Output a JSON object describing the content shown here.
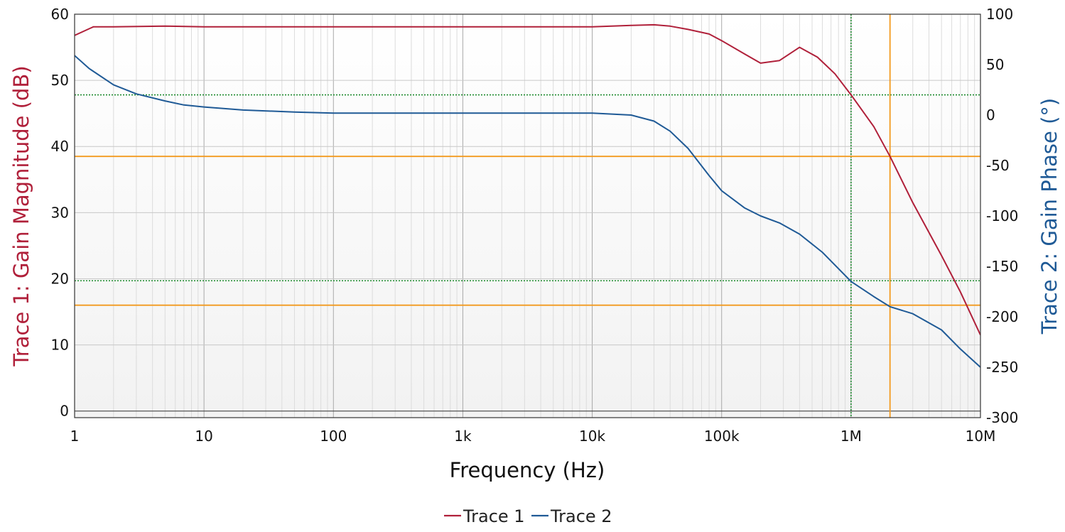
{
  "chart_data": {
    "type": "line",
    "xlabel": "Frequency (Hz)",
    "x_scale": "log",
    "xlim": [
      1,
      10000000
    ],
    "x_ticks": [
      {
        "value": 1,
        "label": "1"
      },
      {
        "value": 10,
        "label": "10"
      },
      {
        "value": 100,
        "label": "100"
      },
      {
        "value": 1000,
        "label": "1k"
      },
      {
        "value": 10000,
        "label": "10k"
      },
      {
        "value": 100000,
        "label": "100k"
      },
      {
        "value": 1000000,
        "label": "1M"
      },
      {
        "value": 10000000,
        "label": "10M"
      }
    ],
    "y_left": {
      "label": "Trace 1: Gain Magnitude (dB)",
      "lim": [
        -1,
        60
      ],
      "ticks": [
        {
          "value": 0,
          "label": "0"
        },
        {
          "value": 10,
          "label": "10"
        },
        {
          "value": 20,
          "label": "20"
        },
        {
          "value": 30,
          "label": "30"
        },
        {
          "value": 40,
          "label": "40"
        },
        {
          "value": 50,
          "label": "50"
        },
        {
          "value": 60,
          "label": "60"
        }
      ],
      "color": "#b0203a"
    },
    "y_right": {
      "label": "Trace 2: Gain Phase (°)",
      "lim": [
        -300,
        100
      ],
      "ticks": [
        {
          "value": 100,
          "label": "100"
        },
        {
          "value": 50,
          "label": "50"
        },
        {
          "value": 0,
          "label": "0"
        },
        {
          "value": -50,
          "label": "-50"
        },
        {
          "value": -100,
          "label": "-100"
        },
        {
          "value": -150,
          "label": "-150"
        },
        {
          "value": -200,
          "label": "-200"
        },
        {
          "value": -250,
          "label": "-250"
        },
        {
          "value": -300,
          "label": "-300"
        }
      ],
      "color": "#1f5a96"
    },
    "grid": true,
    "legend_position": "bottom-center",
    "series": [
      {
        "name": "Trace 1",
        "axis": "left",
        "color": "#b0203a",
        "x": [
          1,
          1.4,
          2,
          5,
          10,
          100,
          1000,
          10000,
          20000,
          30000,
          40000,
          55000,
          80000,
          100000,
          150000,
          200000,
          280000,
          400000,
          550000,
          750000,
          1000000,
          1500000,
          2000000,
          3000000,
          5000000,
          7000000,
          10000000
        ],
        "values": [
          56.8,
          58.1,
          58.1,
          58.2,
          58.1,
          58.1,
          58.1,
          58.1,
          58.3,
          58.4,
          58.2,
          57.7,
          57.0,
          56.0,
          54.0,
          52.6,
          53.0,
          55.0,
          53.5,
          51.0,
          47.8,
          43.0,
          38.5,
          31.5,
          23.5,
          18.0,
          11.5
        ]
      },
      {
        "name": "Trace 2",
        "axis": "right",
        "color": "#1f5a96",
        "x": [
          1,
          1.3,
          2,
          3,
          5,
          7,
          10,
          20,
          50,
          100,
          1000,
          10000,
          20000,
          30000,
          40000,
          55000,
          80000,
          100000,
          150000,
          200000,
          280000,
          400000,
          600000,
          1000000,
          1500000,
          2000000,
          3000000,
          5000000,
          7000000,
          10000000
        ],
        "values": [
          59,
          46,
          30,
          21,
          14,
          10,
          8,
          5,
          3,
          2,
          2,
          2,
          0,
          -6,
          -16,
          -33,
          -60,
          -75,
          -92,
          -100,
          -107,
          -118,
          -136,
          -165,
          -180,
          -190,
          -197,
          -213,
          -232,
          -250
        ]
      }
    ],
    "markers": {
      "orange": {
        "color": "#f39a1e",
        "x": 2000000,
        "y_levels": [
          38.5,
          16.0
        ]
      },
      "green": {
        "color": "#1e8a2e",
        "x": 1000000,
        "y_levels": [
          47.8,
          19.7
        ]
      }
    }
  }
}
